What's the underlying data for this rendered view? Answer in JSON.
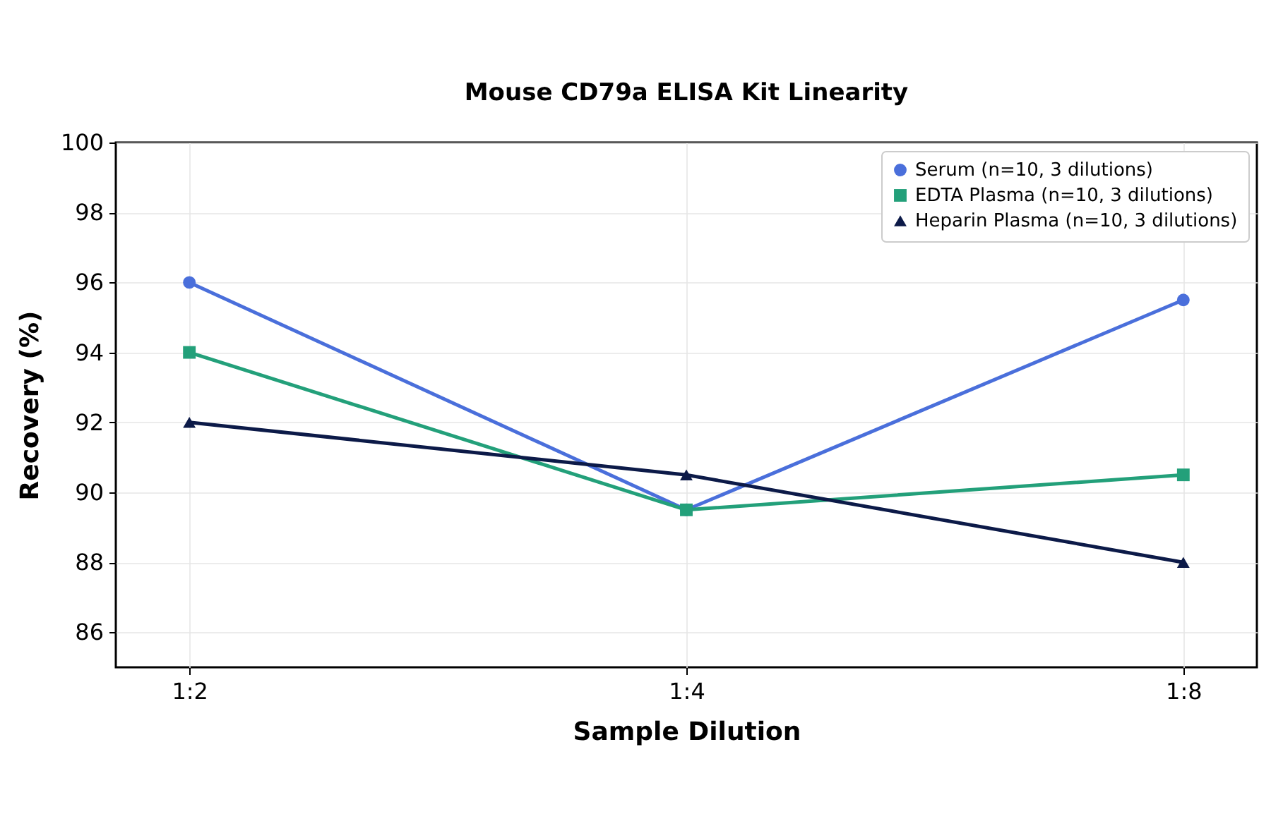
{
  "chart_data": {
    "type": "line",
    "title": "Mouse CD79a ELISA Kit Linearity",
    "xlabel": "Sample Dilution",
    "ylabel": "Recovery (%)",
    "categories": [
      "1:2",
      "1:4",
      "1:8"
    ],
    "series": [
      {
        "name": "Serum (n=10, 3 dilutions)",
        "color": "#4a6fdb",
        "marker": "circle",
        "values": [
          96,
          89.5,
          95.5
        ]
      },
      {
        "name": "EDTA Plasma (n=10, 3 dilutions)",
        "color": "#23a07a",
        "marker": "square",
        "values": [
          94,
          89.5,
          90.5
        ]
      },
      {
        "name": "Heparin Plasma (n=10, 3 dilutions)",
        "color": "#0c1a48",
        "marker": "triangle",
        "values": [
          92,
          90.5,
          88
        ]
      }
    ],
    "ylim": [
      85,
      100
    ],
    "yticks": [
      86,
      88,
      90,
      92,
      94,
      96,
      98,
      100
    ],
    "grid": true,
    "legend": "top right"
  }
}
